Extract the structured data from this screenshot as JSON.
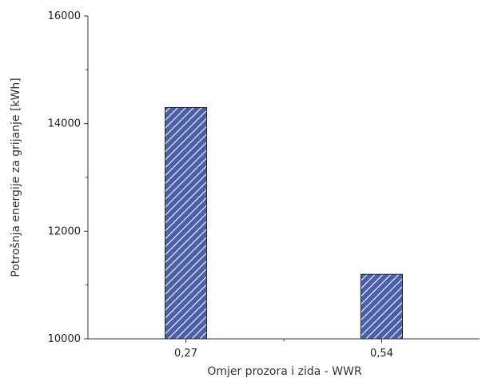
{
  "chart_data": {
    "type": "bar",
    "title": "",
    "xlabel": "Omjer prozora i zida - WWR",
    "ylabel": "Potrošnja energije za grijanje [kWh]",
    "categories": [
      "0,27",
      "0,54"
    ],
    "values": [
      14300,
      11200
    ],
    "ylim": [
      10000,
      16000
    ],
    "yticks": [
      10000,
      12000,
      14000,
      16000
    ],
    "grid": false,
    "legend": "none",
    "bar_fill_color": "#4a5fad",
    "bar_hatch_color": "#ffffff"
  }
}
